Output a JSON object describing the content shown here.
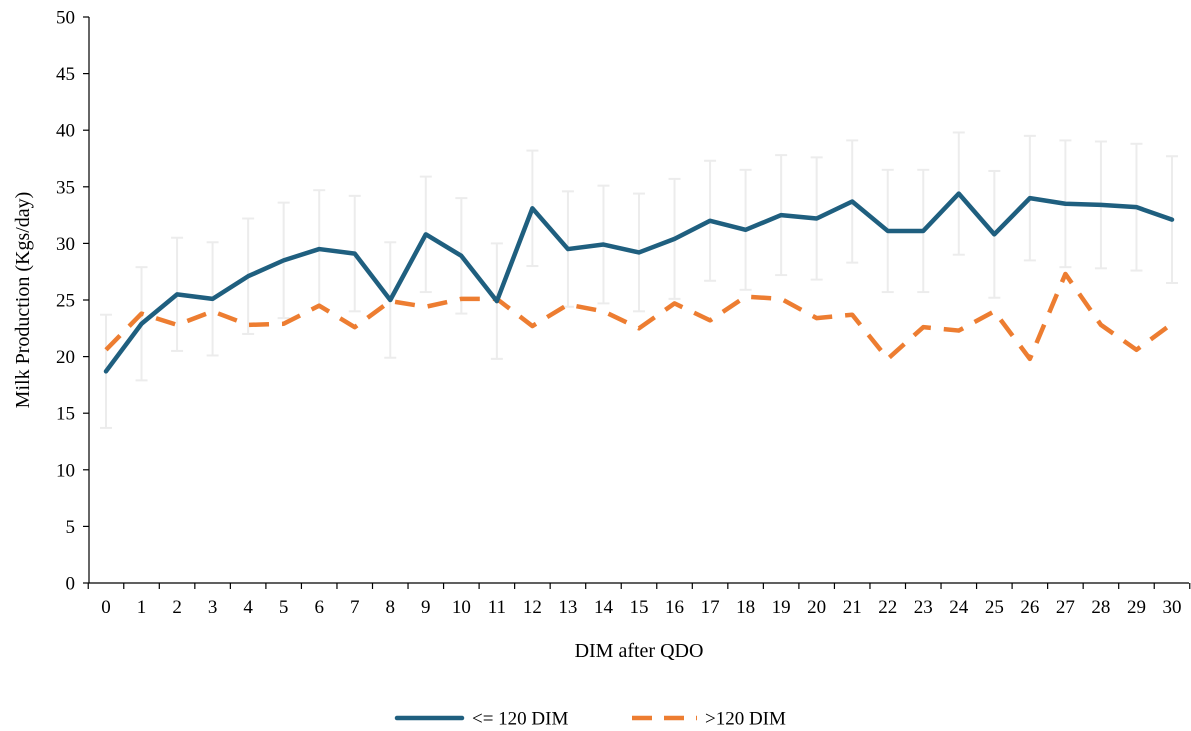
{
  "chart_data": {
    "type": "line",
    "title": "",
    "xlabel": "DIM after QDO",
    "ylabel": "Milk Production (Kgs/day)",
    "ylim": [
      0,
      50
    ],
    "yticks": [
      0,
      5,
      10,
      15,
      20,
      25,
      30,
      35,
      40,
      45,
      50
    ],
    "x": [
      0,
      1,
      2,
      3,
      4,
      5,
      6,
      7,
      8,
      9,
      10,
      11,
      12,
      13,
      14,
      15,
      16,
      17,
      18,
      19,
      20,
      21,
      22,
      23,
      24,
      25,
      26,
      27,
      28,
      29,
      30
    ],
    "grid": false,
    "legend_position": "bottom-center",
    "series": [
      {
        "name": "<= 120 DIM",
        "color": "#1f5f7f",
        "dash": "solid",
        "values": [
          18.7,
          22.9,
          25.5,
          25.1,
          27.1,
          28.5,
          29.5,
          29.1,
          25.0,
          30.8,
          28.9,
          24.9,
          33.1,
          29.5,
          29.9,
          29.2,
          30.4,
          32.0,
          31.2,
          32.5,
          32.2,
          33.7,
          31.1,
          31.1,
          34.4,
          30.8,
          34.0,
          33.5,
          33.4,
          33.2,
          32.1
        ],
        "error": [
          5.0,
          5.0,
          5.0,
          5.0,
          5.1,
          5.1,
          5.2,
          5.1,
          5.1,
          5.1,
          5.1,
          5.1,
          5.1,
          5.1,
          5.2,
          5.2,
          5.3,
          5.3,
          5.3,
          5.3,
          5.4,
          5.4,
          5.4,
          5.4,
          5.4,
          5.6,
          5.5,
          5.6,
          5.6,
          5.6,
          5.6
        ]
      },
      {
        "name": ">120 DIM",
        "color": "#ed7d31",
        "dash": "dashed",
        "values": [
          20.6,
          23.8,
          22.8,
          24.0,
          22.8,
          22.9,
          24.5,
          22.6,
          24.9,
          24.4,
          25.1,
          25.1,
          22.7,
          24.6,
          24.0,
          22.5,
          24.7,
          23.2,
          25.3,
          25.1,
          23.4,
          23.7,
          19.8,
          22.6,
          22.3,
          24.0,
          19.8,
          27.3,
          22.8,
          20.6,
          22.9
        ]
      }
    ]
  }
}
